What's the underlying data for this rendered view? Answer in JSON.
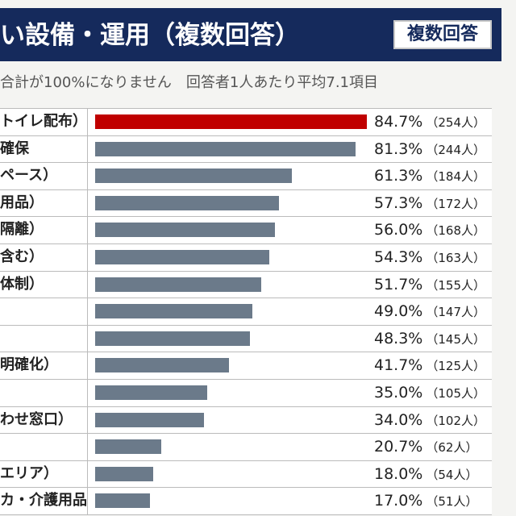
{
  "header": {
    "title": "い設備・運用（複数回答）",
    "badge": "複数回答",
    "subtitle": "合計が100%になりません　回答者1人あたり平均7.1項目"
  },
  "colors": {
    "banner": "#152a5c",
    "highlight_bar": "#c00000",
    "bar": "#6b7a8a"
  },
  "chart_data": {
    "type": "bar",
    "orientation": "horizontal",
    "categories": [
      "トイレ配布）",
      "確保",
      "ペース）",
      "用品）",
      "隔離）",
      "含む）",
      "体制）",
      "",
      "",
      "明確化）",
      "",
      "わせ窓口）",
      "",
      "エリア）",
      "カ・介護用品）"
    ],
    "values": [
      84.7,
      81.3,
      61.3,
      57.3,
      56.0,
      54.3,
      51.7,
      49.0,
      48.3,
      41.7,
      35.0,
      34.0,
      20.7,
      18.0,
      17.0
    ],
    "value_labels": [
      "84.7%",
      "81.3%",
      "61.3%",
      "57.3%",
      "56.0%",
      "54.3%",
      "51.7%",
      "49.0%",
      "48.3%",
      "41.7%",
      "35.0%",
      "34.0%",
      "20.7%",
      "18.0%",
      "17.0%"
    ],
    "counts": [
      "（254人）",
      "（244人）",
      "（184人）",
      "（172人）",
      "（168人）",
      "（163人）",
      "（155人）",
      "（147人）",
      "（145人）",
      "（125人）",
      "（105人）",
      "（102人）",
      "（62人）",
      "（54人）",
      "（51人）"
    ],
    "unit": "%",
    "highlight_index": 0
  }
}
